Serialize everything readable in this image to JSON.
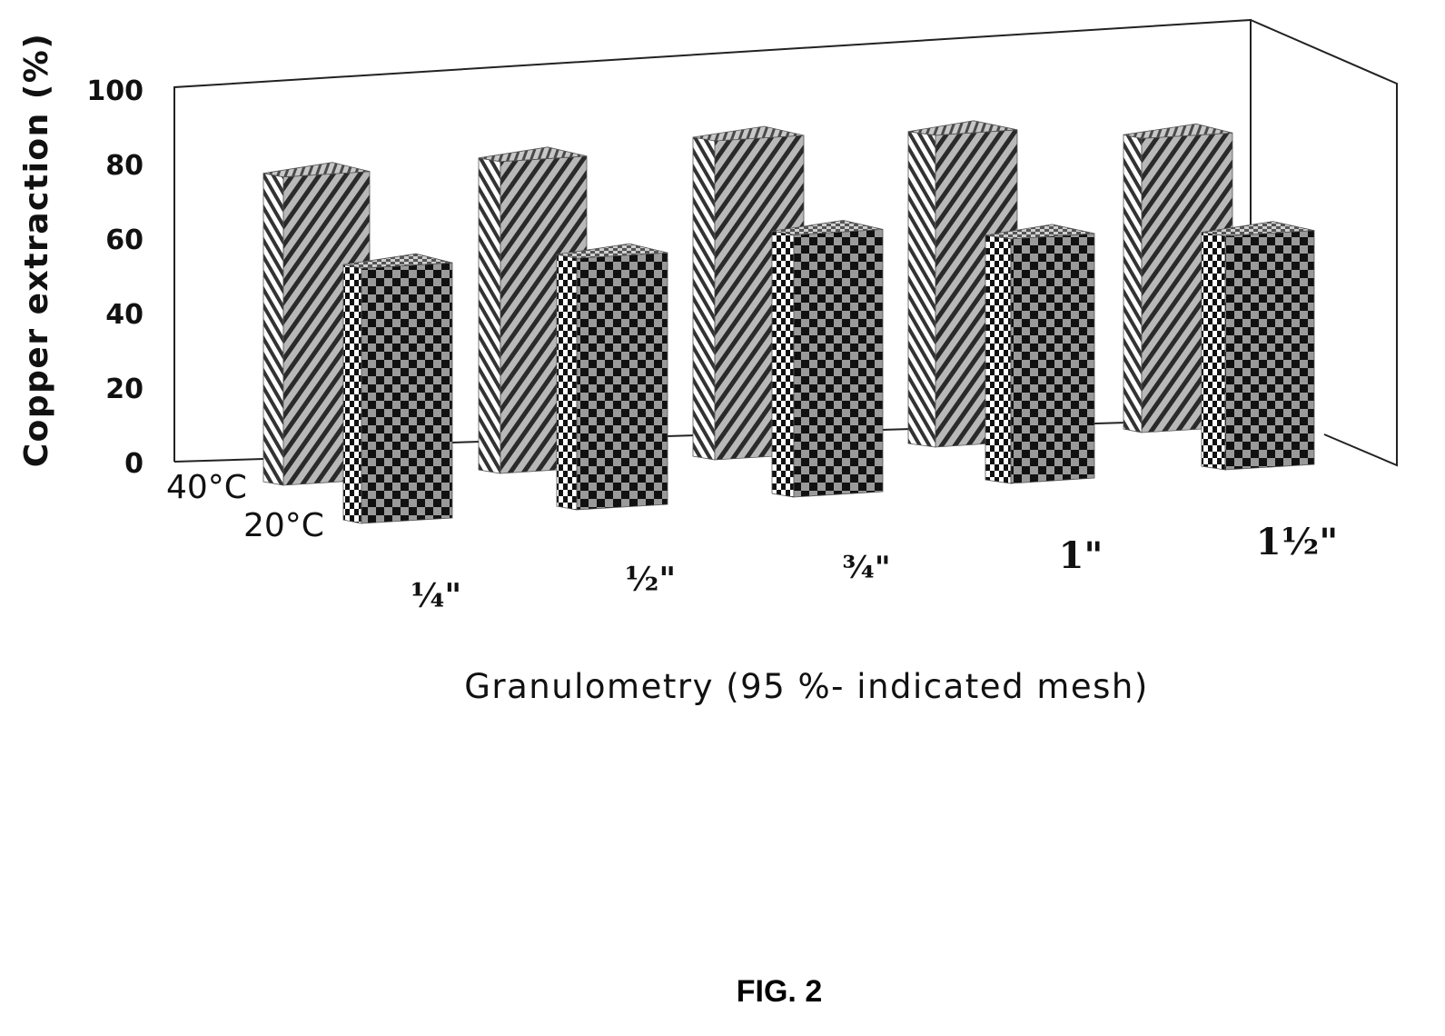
{
  "chart_data": {
    "type": "bar",
    "title": "",
    "xlabel": "Granulometry (95 %- indicated mesh)",
    "ylabel": "Copper extraction (%)",
    "ylim": [
      0,
      100
    ],
    "yticks": [
      "0",
      "20",
      "40",
      "60",
      "80",
      "100"
    ],
    "categories": [
      "¼\"",
      "½\"",
      "¾\"",
      "1\"",
      "1½\""
    ],
    "series": [
      {
        "name": "40°C",
        "values": [
          87,
          88,
          90,
          88,
          83
        ]
      },
      {
        "name": "20°C",
        "values": [
          72,
          71,
          74,
          69,
          66
        ]
      }
    ],
    "three_d": true,
    "grid": false,
    "legend": "none"
  },
  "colors": {
    "stripe_dark": "#2a2a2a",
    "stripe_light": "#b8b8b8",
    "check_dark": "#111111",
    "check_light": "#9a9a9a",
    "axis": "#222222"
  },
  "caption": "FIG. 2"
}
